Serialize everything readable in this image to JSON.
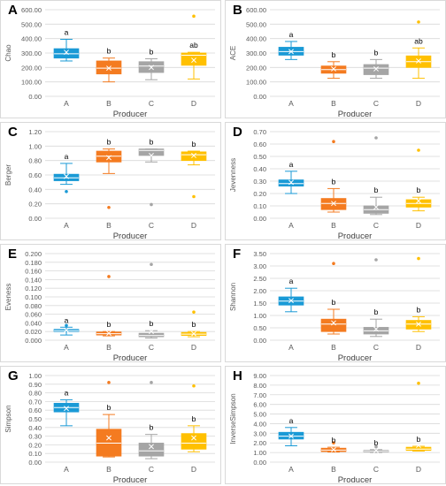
{
  "colors": {
    "A": "#1a9ad6",
    "B": "#f47b20",
    "C": "#a5a5a5",
    "D": "#ffc000",
    "grid": "#d9d9d9",
    "text": "#595959"
  },
  "chart_data": [
    {
      "type": "box",
      "panel": "A",
      "ylabel": "Chao",
      "xlabel": "Producer",
      "categories": [
        "A",
        "B",
        "C",
        "D"
      ],
      "yticks": [
        "0.00",
        "100.00",
        "200.00",
        "300.00",
        "400.00",
        "500.00",
        "600.00"
      ],
      "ylim": [
        0,
        600
      ],
      "boxes": [
        {
          "category": "A",
          "min": 245,
          "q1": 265,
          "median": 295,
          "q3": 330,
          "max": 395,
          "mean": 305,
          "outliers": [],
          "letter": "a",
          "color_key": "A"
        },
        {
          "category": "B",
          "min": 100,
          "q1": 155,
          "median": 195,
          "q3": 245,
          "max": 265,
          "mean": 195,
          "outliers": [],
          "letter": "b",
          "color_key": "B"
        },
        {
          "category": "C",
          "min": 115,
          "q1": 165,
          "median": 210,
          "q3": 240,
          "max": 260,
          "mean": 200,
          "outliers": [],
          "letter": "b",
          "color_key": "C"
        },
        {
          "category": "D",
          "min": 120,
          "q1": 215,
          "median": 285,
          "q3": 300,
          "max": 305,
          "mean": 250,
          "outliers": [
            555
          ],
          "letter": "ab",
          "color_key": "D"
        }
      ]
    },
    {
      "type": "box",
      "panel": "B",
      "ylabel": "ACE",
      "xlabel": "Producer",
      "categories": [
        "A",
        "B",
        "C",
        "D"
      ],
      "yticks": [
        "0.00",
        "100.00",
        "200.00",
        "300.00",
        "400.00",
        "500.00",
        "600.00"
      ],
      "ylim": [
        0,
        600
      ],
      "boxes": [
        {
          "category": "A",
          "min": 255,
          "q1": 285,
          "median": 310,
          "q3": 340,
          "max": 380,
          "mean": 310,
          "outliers": [],
          "letter": "a",
          "color_key": "A"
        },
        {
          "category": "B",
          "min": 125,
          "q1": 160,
          "median": 185,
          "q3": 210,
          "max": 240,
          "mean": 190,
          "outliers": [],
          "letter": "b",
          "color_key": "B"
        },
        {
          "category": "C",
          "min": 125,
          "q1": 150,
          "median": 195,
          "q3": 220,
          "max": 255,
          "mean": 190,
          "outliers": [],
          "letter": "b",
          "color_key": "C"
        },
        {
          "category": "D",
          "min": 125,
          "q1": 200,
          "median": 240,
          "q3": 280,
          "max": 335,
          "mean": 245,
          "outliers": [
            515
          ],
          "letter": "ab",
          "color_key": "D"
        }
      ]
    },
    {
      "type": "box",
      "panel": "C",
      "ylabel": "Berger",
      "xlabel": "Producer",
      "categories": [
        "A",
        "B",
        "C",
        "D"
      ],
      "yticks": [
        "0.00",
        "0.20",
        "0.40",
        "0.60",
        "0.80",
        "1.00",
        "1.20"
      ],
      "ylim": [
        0,
        1.2
      ],
      "boxes": [
        {
          "category": "A",
          "min": 0.47,
          "q1": 0.52,
          "median": 0.56,
          "q3": 0.61,
          "max": 0.76,
          "mean": 0.58,
          "outliers": [
            0.37
          ],
          "letter": "a",
          "color_key": "A"
        },
        {
          "category": "B",
          "min": 0.62,
          "q1": 0.78,
          "median": 0.86,
          "q3": 0.93,
          "max": 0.96,
          "mean": 0.84,
          "outliers": [
            0.15
          ],
          "letter": "b",
          "color_key": "B"
        },
        {
          "category": "C",
          "min": 0.78,
          "q1": 0.87,
          "median": 0.94,
          "q3": 0.96,
          "max": 0.96,
          "mean": 0.87,
          "outliers": [
            0.19
          ],
          "letter": "b",
          "color_key": "C"
        },
        {
          "category": "D",
          "min": 0.74,
          "q1": 0.8,
          "median": 0.88,
          "q3": 0.92,
          "max": 0.93,
          "mean": 0.87,
          "outliers": [
            0.3
          ],
          "letter": "b",
          "color_key": "D"
        }
      ]
    },
    {
      "type": "box",
      "panel": "D",
      "ylabel": "Jevenness",
      "xlabel": "Producer",
      "categories": [
        "A",
        "B",
        "C",
        "D"
      ],
      "yticks": [
        "0.00",
        "0.10",
        "0.20",
        "0.30",
        "0.40",
        "0.50",
        "0.60",
        "0.70"
      ],
      "ylim": [
        0,
        0.7
      ],
      "boxes": [
        {
          "category": "A",
          "min": 0.2,
          "q1": 0.26,
          "median": 0.28,
          "q3": 0.31,
          "max": 0.38,
          "mean": 0.29,
          "outliers": [],
          "letter": "a",
          "color_key": "A"
        },
        {
          "category": "B",
          "min": 0.05,
          "q1": 0.07,
          "median": 0.12,
          "q3": 0.16,
          "max": 0.24,
          "mean": 0.12,
          "outliers": [
            0.62
          ],
          "letter": "b",
          "color_key": "B"
        },
        {
          "category": "C",
          "min": 0.03,
          "q1": 0.04,
          "median": 0.07,
          "q3": 0.1,
          "max": 0.17,
          "mean": 0.09,
          "outliers": [
            0.65
          ],
          "letter": "b",
          "color_key": "C"
        },
        {
          "category": "D",
          "min": 0.06,
          "q1": 0.09,
          "median": 0.12,
          "q3": 0.15,
          "max": 0.17,
          "mean": 0.14,
          "outliers": [
            0.55
          ],
          "letter": "b",
          "color_key": "D"
        }
      ]
    },
    {
      "type": "box",
      "panel": "E",
      "ylabel": "Eveness",
      "xlabel": "Producer",
      "categories": [
        "A",
        "B",
        "C",
        "D"
      ],
      "yticks": [
        "0.000",
        "0.020",
        "0.040",
        "0.060",
        "0.080",
        "0.100",
        "0.120",
        "0.140",
        "0.160",
        "0.180",
        "0.200"
      ],
      "ylim": [
        0,
        0.2
      ],
      "boxes": [
        {
          "category": "A",
          "min": 0.012,
          "q1": 0.02,
          "median": 0.022,
          "q3": 0.025,
          "max": 0.03,
          "mean": 0.023,
          "outliers": [
            0.034
          ],
          "letter": "a",
          "color_key": "A"
        },
        {
          "category": "B",
          "min": 0.01,
          "q1": 0.012,
          "median": 0.015,
          "q3": 0.019,
          "max": 0.02,
          "mean": 0.016,
          "outliers": [
            0.147
          ],
          "letter": "b",
          "color_key": "B"
        },
        {
          "category": "C",
          "min": 0.005,
          "q1": 0.008,
          "median": 0.011,
          "q3": 0.016,
          "max": 0.022,
          "mean": 0.02,
          "outliers": [
            0.175
          ],
          "letter": "b",
          "color_key": "C"
        },
        {
          "category": "D",
          "min": 0.008,
          "q1": 0.011,
          "median": 0.014,
          "q3": 0.018,
          "max": 0.02,
          "mean": 0.015,
          "outliers": [
            0.065
          ],
          "letter": "b",
          "color_key": "D"
        }
      ]
    },
    {
      "type": "box",
      "panel": "F",
      "ylabel": "Shannon",
      "xlabel": "Producer",
      "categories": [
        "A",
        "B",
        "C",
        "D"
      ],
      "yticks": [
        "0.00",
        "0.50",
        "1.00",
        "1.50",
        "2.00",
        "2.50",
        "3.00",
        "3.50"
      ],
      "ylim": [
        0,
        3.5
      ],
      "boxes": [
        {
          "category": "A",
          "min": 1.15,
          "q1": 1.42,
          "median": 1.58,
          "q3": 1.75,
          "max": 2.1,
          "mean": 1.6,
          "outliers": [],
          "letter": "a",
          "color_key": "A"
        },
        {
          "category": "B",
          "min": 0.25,
          "q1": 0.35,
          "median": 0.65,
          "q3": 0.85,
          "max": 1.25,
          "mean": 0.7,
          "outliers": [
            3.1
          ],
          "letter": "b",
          "color_key": "B"
        },
        {
          "category": "C",
          "min": 0.15,
          "q1": 0.25,
          "median": 0.38,
          "q3": 0.52,
          "max": 0.85,
          "mean": 0.45,
          "outliers": [
            3.25
          ],
          "letter": "b",
          "color_key": "C"
        },
        {
          "category": "D",
          "min": 0.35,
          "q1": 0.45,
          "median": 0.65,
          "q3": 0.8,
          "max": 0.95,
          "mean": 0.65,
          "outliers": [
            3.3
          ],
          "letter": "b",
          "color_key": "D"
        }
      ]
    },
    {
      "type": "box",
      "panel": "G",
      "ylabel": "Simpson",
      "xlabel": "Producer",
      "categories": [
        "A",
        "B",
        "C",
        "D"
      ],
      "yticks": [
        "0.00",
        "0.10",
        "0.20",
        "0.30",
        "0.40",
        "0.50",
        "0.60",
        "0.70",
        "0.80",
        "0.90",
        "1.00"
      ],
      "ylim": [
        0,
        1.0
      ],
      "boxes": [
        {
          "category": "A",
          "min": 0.42,
          "q1": 0.58,
          "median": 0.63,
          "q3": 0.68,
          "max": 0.72,
          "mean": 0.62,
          "outliers": [],
          "letter": "a",
          "color_key": "A"
        },
        {
          "category": "B",
          "min": 0.06,
          "q1": 0.07,
          "median": 0.22,
          "q3": 0.38,
          "max": 0.55,
          "mean": 0.28,
          "outliers": [
            0.92
          ],
          "letter": "b",
          "color_key": "B"
        },
        {
          "category": "C",
          "min": 0.04,
          "q1": 0.07,
          "median": 0.13,
          "q3": 0.22,
          "max": 0.32,
          "mean": 0.18,
          "outliers": [
            0.92
          ],
          "letter": "b",
          "color_key": "C"
        },
        {
          "category": "D",
          "min": 0.12,
          "q1": 0.15,
          "median": 0.22,
          "q3": 0.33,
          "max": 0.42,
          "mean": 0.28,
          "outliers": [
            0.88
          ],
          "letter": "b",
          "color_key": "D"
        }
      ]
    },
    {
      "type": "box",
      "panel": "H",
      "ylabel": "InverseSimpson",
      "xlabel": "Producer",
      "categories": [
        "A",
        "B",
        "C",
        "D"
      ],
      "yticks": [
        "0.00",
        "1.00",
        "2.00",
        "3.00",
        "4.00",
        "5.00",
        "6.00",
        "7.00",
        "8.00",
        "9.00"
      ],
      "ylim": [
        0,
        9.0
      ],
      "boxes": [
        {
          "category": "A",
          "min": 1.7,
          "q1": 2.4,
          "median": 2.7,
          "q3": 3.1,
          "max": 3.6,
          "mean": 2.7,
          "outliers": [],
          "letter": "a",
          "color_key": "A"
        },
        {
          "category": "B",
          "min": 1.05,
          "q1": 1.1,
          "median": 1.25,
          "q3": 1.45,
          "max": 1.55,
          "mean": 1.3,
          "outliers": [
            2.0
          ],
          "letter": "b",
          "color_key": "B"
        },
        {
          "category": "C",
          "min": 1.0,
          "q1": 1.05,
          "median": 1.12,
          "q3": 1.22,
          "max": 1.3,
          "mean": 1.2,
          "outliers": [
            1.6
          ],
          "letter": "b",
          "color_key": "C"
        },
        {
          "category": "D",
          "min": 1.15,
          "q1": 1.22,
          "median": 1.35,
          "q3": 1.55,
          "max": 1.65,
          "mean": 1.75,
          "outliers": [
            8.2
          ],
          "letter": "b",
          "color_key": "D"
        }
      ]
    }
  ]
}
